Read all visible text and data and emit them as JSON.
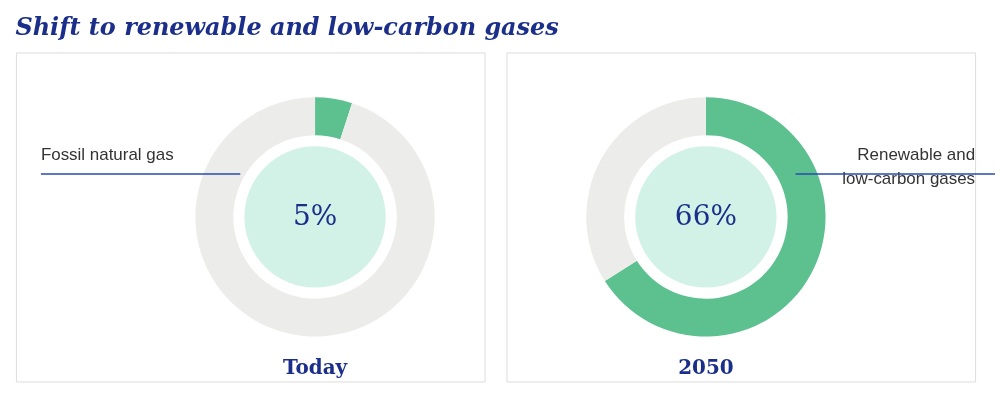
{
  "chart_data": [
    {
      "type": "donut",
      "title": "Shift to renewable and low-carbon gases",
      "categories": [
        null,
        "Fossil natural gas"
      ],
      "values": [
        5,
        95
      ],
      "colors": [
        "#5cc08f",
        "#ececea"
      ],
      "value_labels": [
        "5%",
        null
      ],
      "annotations": [
        "Today"
      ]
    },
    {
      "type": "donut",
      "categories": [
        "Renewable and low-carbon gases",
        null
      ],
      "values": [
        66,
        34
      ],
      "colors": [
        "#5cc08f",
        "#ececea"
      ],
      "value_labels": [
        "66%",
        null
      ],
      "annotations": [
        "2050"
      ]
    }
  ]
}
